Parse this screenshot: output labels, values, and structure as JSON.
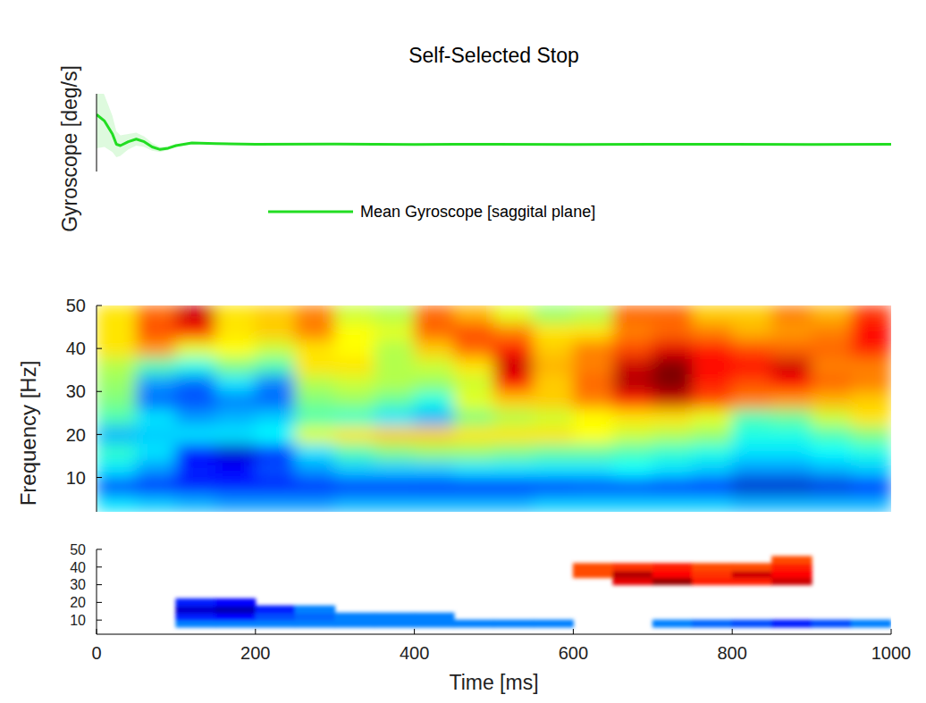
{
  "chart_data": [
    {
      "type": "line",
      "title": "Self-Selected Stop",
      "y_label": "Gyroscope [deg/s]",
      "tick_labels": false,
      "legend": "bottom",
      "xlim": [
        0,
        1000
      ],
      "ylim": [
        -20,
        40
      ],
      "x": [
        0,
        10,
        20,
        25,
        30,
        40,
        50,
        60,
        70,
        80,
        90,
        100,
        120,
        150,
        200,
        300,
        400,
        500,
        600,
        700,
        800,
        900,
        1000
      ],
      "series": [
        {
          "name": "Mean Gyroscope [saggital plane]",
          "color": "#22dd22",
          "values": [
            24,
            19,
            9,
            1,
            0,
            3,
            5,
            3,
            -1,
            -3,
            -2,
            0,
            2,
            1.5,
            1,
            1.2,
            0.9,
            1,
            0.9,
            1,
            1,
            0.9,
            1
          ],
          "error": [
            26,
            20,
            14,
            10,
            8,
            6,
            5,
            4,
            3,
            2,
            1.5,
            1,
            0.8,
            0.5,
            0.5,
            0.5,
            0.5,
            0.5,
            0.5,
            0.5,
            0.5,
            0.5,
            0.5
          ]
        }
      ]
    },
    {
      "type": "heatmap",
      "y_label": "Frequency [Hz]",
      "tick_labels": "y",
      "xlim": [
        0,
        1000
      ],
      "ylim": [
        2,
        50
      ],
      "yticks": [
        10,
        20,
        30,
        40,
        50
      ],
      "clim": [
        -1,
        1
      ],
      "x": [
        25,
        75,
        125,
        175,
        225,
        275,
        325,
        375,
        425,
        475,
        525,
        575,
        625,
        675,
        725,
        775,
        825,
        875,
        925,
        975
      ],
      "y": [
        4,
        8,
        12,
        16,
        20,
        24,
        28,
        32,
        36,
        40,
        44,
        48
      ],
      "cells": [
        [
          -0.3,
          -0.35,
          -0.4,
          -0.45,
          -0.45,
          -0.45,
          -0.4,
          -0.4,
          -0.4,
          -0.4,
          -0.4,
          -0.35,
          -0.35,
          -0.35,
          -0.35,
          -0.35,
          -0.4,
          -0.4,
          -0.4,
          -0.4
        ],
        [
          -0.65,
          -0.7,
          -0.7,
          -0.7,
          -0.7,
          -0.7,
          -0.7,
          -0.7,
          -0.72,
          -0.72,
          -0.72,
          -0.7,
          -0.65,
          -0.65,
          -0.7,
          -0.75,
          -0.85,
          -0.85,
          -0.8,
          -0.75
        ],
        [
          -0.3,
          -0.45,
          -0.7,
          -0.75,
          -0.6,
          -0.45,
          -0.35,
          -0.35,
          -0.35,
          -0.3,
          -0.3,
          -0.3,
          -0.3,
          -0.25,
          -0.3,
          -0.35,
          -0.45,
          -0.45,
          -0.4,
          -0.35
        ],
        [
          -0.15,
          -0.3,
          -0.75,
          -0.85,
          -0.65,
          -0.3,
          -0.1,
          0.0,
          0.05,
          0.05,
          0.0,
          -0.05,
          -0.05,
          -0.1,
          -0.15,
          -0.2,
          -0.3,
          -0.3,
          -0.25,
          -0.2
        ],
        [
          -0.4,
          -0.35,
          -0.3,
          -0.3,
          -0.25,
          0.2,
          0.3,
          0.35,
          0.35,
          0.3,
          0.3,
          0.3,
          0.25,
          0.15,
          0.1,
          0.05,
          -0.2,
          -0.2,
          -0.1,
          0.0
        ],
        [
          -0.1,
          -0.3,
          -0.45,
          -0.4,
          -0.35,
          -0.1,
          -0.15,
          -0.3,
          -0.4,
          0.0,
          0.1,
          0.15,
          0.25,
          0.3,
          0.3,
          0.2,
          -0.1,
          -0.05,
          0.15,
          0.3
        ],
        [
          0.0,
          -0.55,
          -0.6,
          -0.5,
          -0.55,
          0.0,
          0.05,
          -0.05,
          -0.2,
          0.2,
          0.35,
          0.35,
          0.5,
          0.7,
          0.85,
          0.6,
          0.5,
          0.45,
          0.4,
          0.35
        ],
        [
          0.05,
          -0.45,
          -0.55,
          -0.3,
          -0.5,
          0.1,
          0.15,
          0.1,
          0.05,
          0.15,
          0.75,
          0.35,
          0.55,
          0.9,
          1.0,
          0.7,
          0.6,
          0.75,
          0.55,
          0.5
        ],
        [
          0.1,
          -0.1,
          -0.2,
          0.0,
          -0.1,
          0.3,
          0.3,
          0.1,
          0.15,
          0.3,
          0.85,
          0.4,
          0.5,
          0.85,
          1.0,
          0.75,
          0.75,
          0.85,
          0.5,
          0.5
        ],
        [
          0.3,
          0.45,
          0.2,
          0.25,
          0.15,
          0.3,
          0.25,
          0.1,
          0.35,
          0.55,
          0.7,
          0.35,
          0.5,
          0.6,
          0.8,
          0.7,
          0.6,
          0.55,
          0.55,
          0.7
        ],
        [
          0.3,
          0.6,
          0.7,
          0.3,
          0.35,
          0.5,
          0.25,
          0.2,
          0.55,
          0.6,
          0.5,
          0.3,
          0.3,
          0.5,
          0.55,
          0.5,
          0.4,
          0.45,
          0.5,
          0.75
        ],
        [
          0.3,
          0.55,
          0.85,
          0.3,
          0.35,
          0.5,
          0.15,
          0.1,
          0.55,
          0.4,
          0.2,
          0.05,
          0.1,
          0.55,
          0.55,
          0.35,
          0.35,
          0.5,
          0.4,
          0.65
        ]
      ]
    },
    {
      "type": "heatmap",
      "x_label": "Time [ms]",
      "xlim": [
        0,
        1000
      ],
      "ylim": [
        2,
        50
      ],
      "xticks": [
        0,
        200,
        400,
        600,
        800,
        1000
      ],
      "yticks": [
        10,
        20,
        30,
        40,
        50
      ],
      "clim": [
        -1,
        1
      ],
      "x": [
        25,
        75,
        125,
        175,
        225,
        275,
        325,
        375,
        425,
        475,
        525,
        575,
        625,
        675,
        725,
        775,
        825,
        875,
        925,
        975
      ],
      "y": [
        4,
        8,
        12,
        16,
        20,
        24,
        28,
        32,
        36,
        40,
        44,
        48
      ],
      "cells": [
        [
          null,
          null,
          null,
          null,
          null,
          null,
          null,
          null,
          null,
          null,
          null,
          null,
          null,
          null,
          null,
          null,
          null,
          null,
          null,
          null
        ],
        [
          null,
          null,
          -0.5,
          -0.5,
          -0.5,
          -0.5,
          -0.5,
          -0.5,
          -0.5,
          -0.5,
          -0.5,
          -0.5,
          null,
          null,
          -0.5,
          -0.55,
          -0.6,
          -0.7,
          -0.6,
          -0.5
        ],
        [
          null,
          null,
          -0.7,
          -0.75,
          -0.6,
          -0.55,
          -0.5,
          -0.5,
          -0.5,
          null,
          null,
          null,
          null,
          null,
          null,
          null,
          null,
          null,
          null,
          null
        ],
        [
          null,
          null,
          -0.85,
          -0.9,
          -0.7,
          -0.5,
          null,
          null,
          null,
          null,
          null,
          null,
          null,
          null,
          null,
          null,
          null,
          null,
          null,
          null
        ],
        [
          null,
          null,
          -0.7,
          -0.75,
          null,
          null,
          null,
          null,
          null,
          null,
          null,
          null,
          null,
          null,
          null,
          null,
          null,
          null,
          null,
          null
        ],
        [
          null,
          null,
          null,
          null,
          null,
          null,
          null,
          null,
          null,
          null,
          null,
          null,
          null,
          null,
          null,
          null,
          null,
          null,
          null,
          null
        ],
        [
          null,
          null,
          null,
          null,
          null,
          null,
          null,
          null,
          null,
          null,
          null,
          null,
          null,
          null,
          null,
          null,
          null,
          null,
          null,
          null
        ],
        [
          null,
          null,
          null,
          null,
          null,
          null,
          null,
          null,
          null,
          null,
          null,
          null,
          null,
          0.8,
          0.95,
          0.7,
          0.7,
          0.85,
          null,
          null
        ],
        [
          null,
          null,
          null,
          null,
          null,
          null,
          null,
          null,
          null,
          null,
          null,
          null,
          0.6,
          0.9,
          0.75,
          0.65,
          0.85,
          0.75,
          null,
          null
        ],
        [
          null,
          null,
          null,
          null,
          null,
          null,
          null,
          null,
          null,
          null,
          null,
          null,
          0.6,
          0.65,
          0.7,
          0.6,
          0.6,
          0.7,
          null,
          null
        ],
        [
          null,
          null,
          null,
          null,
          null,
          null,
          null,
          null,
          null,
          null,
          null,
          null,
          null,
          null,
          null,
          null,
          null,
          0.6,
          null,
          null
        ],
        [
          null,
          null,
          null,
          null,
          null,
          null,
          null,
          null,
          null,
          null,
          null,
          null,
          null,
          null,
          null,
          null,
          null,
          null,
          null,
          null
        ]
      ]
    }
  ]
}
